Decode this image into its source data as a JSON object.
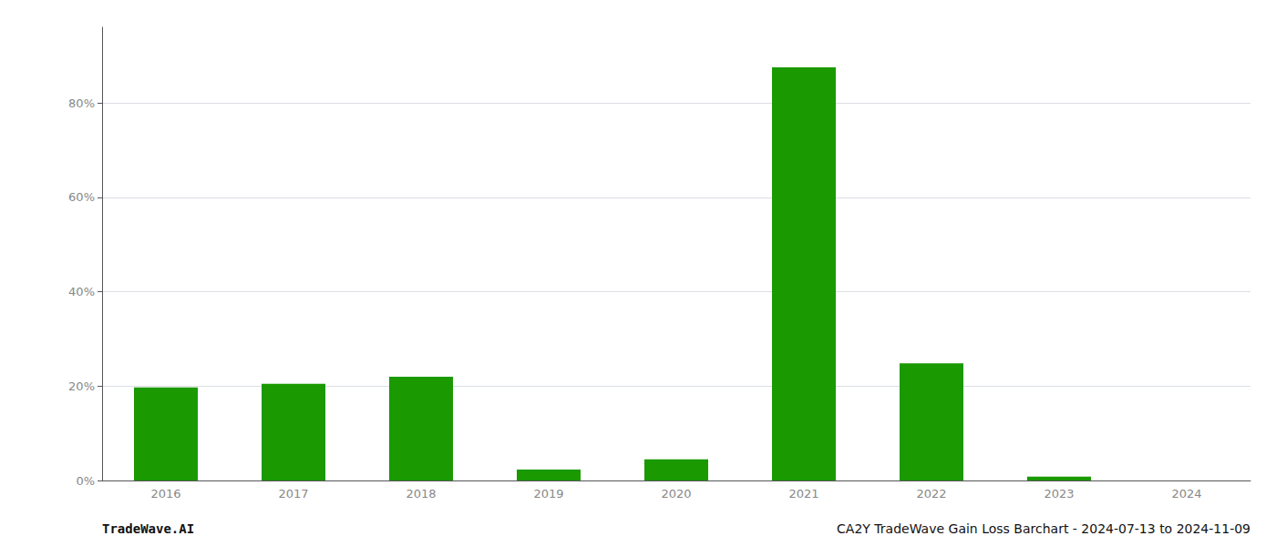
{
  "chart_data": {
    "type": "bar",
    "categories": [
      "2016",
      "2017",
      "2018",
      "2019",
      "2020",
      "2021",
      "2022",
      "2023",
      "2024"
    ],
    "values": [
      0.197,
      0.205,
      0.22,
      0.023,
      0.045,
      0.875,
      0.248,
      0.008,
      0.0
    ],
    "color": "#1a9900",
    "ylim": [
      0,
      0.96
    ],
    "yticks": [
      {
        "value": 0.0,
        "label": "0%"
      },
      {
        "value": 0.2,
        "label": "20%"
      },
      {
        "value": 0.4,
        "label": "40%"
      },
      {
        "value": 0.6,
        "label": "60%"
      },
      {
        "value": 0.8,
        "label": "80%"
      }
    ],
    "grid": true,
    "annotations": [
      "TradeWave.AI",
      "CA2Y TradeWave Gain Loss Barchart - 2024-07-13 to 2024-11-09"
    ]
  }
}
